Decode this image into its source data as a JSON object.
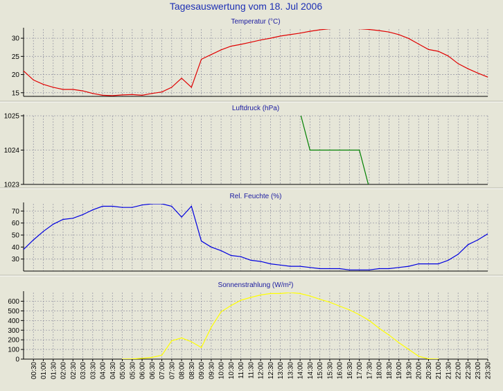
{
  "page": {
    "title": "Tagesauswertung vom 18. Jul 2006"
  },
  "chart_data": [
    {
      "id": "temperature",
      "type": "line",
      "title": "Temperatur (°C)",
      "ylim": [
        14,
        32.5
      ],
      "yticks": [
        15,
        20,
        25,
        30
      ],
      "color": "#e00000",
      "grid": true,
      "series": [
        {
          "values": [
            [
              0,
              21
            ],
            [
              0.5,
              18.5
            ],
            [
              1,
              17.3
            ],
            [
              1.5,
              16.5
            ],
            [
              2,
              15.9
            ],
            [
              2.5,
              15.9
            ],
            [
              3,
              15.5
            ],
            [
              3.5,
              14.8
            ],
            [
              4,
              14.3
            ],
            [
              4.5,
              14.2
            ],
            [
              5,
              14.4
            ],
            [
              5.5,
              14.5
            ],
            [
              6,
              14.3
            ],
            [
              6.5,
              14.8
            ],
            [
              7,
              15.2
            ],
            [
              7.5,
              16.5
            ],
            [
              8,
              19
            ],
            [
              8.5,
              16.5
            ],
            [
              9,
              24.2
            ],
            [
              9.5,
              25.5
            ],
            [
              10,
              26.8
            ],
            [
              10.5,
              27.8
            ],
            [
              11,
              28.3
            ],
            [
              11.5,
              28.9
            ],
            [
              12,
              29.5
            ],
            [
              12.5,
              30
            ],
            [
              13,
              30.6
            ],
            [
              13.5,
              31
            ],
            [
              14,
              31.4
            ],
            [
              14.5,
              31.9
            ],
            [
              15,
              32.3
            ],
            [
              15.5,
              32.6
            ],
            [
              16,
              32.7
            ],
            [
              16.5,
              32.7
            ],
            [
              17,
              32.6
            ],
            [
              17.5,
              32.4
            ],
            [
              18,
              32.1
            ],
            [
              18.5,
              31.7
            ],
            [
              19,
              31
            ],
            [
              19.5,
              29.9
            ],
            [
              20,
              28.4
            ],
            [
              20.5,
              26.9
            ],
            [
              21,
              26.4
            ],
            [
              21.5,
              25.1
            ],
            [
              22,
              23
            ],
            [
              22.5,
              21.6
            ],
            [
              23,
              20.4
            ],
            [
              23.5,
              19.3
            ]
          ]
        }
      ]
    },
    {
      "id": "pressure",
      "type": "line",
      "title": "Luftdruck (hPa)",
      "ylim": [
        1023,
        1025
      ],
      "yticks": [
        1023,
        1024,
        1025
      ],
      "color": "#008000",
      "grid": true,
      "series": [
        {
          "values": [
            [
              14,
              1025.1
            ],
            [
              14.5,
              1024
            ],
            [
              15,
              1024
            ],
            [
              15.5,
              1024
            ],
            [
              16,
              1024
            ],
            [
              16.5,
              1024
            ],
            [
              17,
              1024
            ],
            [
              17.5,
              1022.9
            ]
          ]
        }
      ]
    },
    {
      "id": "humidity",
      "type": "line",
      "title": "Rel. Feuchte (%)",
      "ylim": [
        20,
        76
      ],
      "yticks": [
        30,
        40,
        50,
        60,
        70
      ],
      "color": "#0000e0",
      "grid": true,
      "series": [
        {
          "values": [
            [
              0,
              38
            ],
            [
              0.5,
              46
            ],
            [
              1,
              53
            ],
            [
              1.5,
              59
            ],
            [
              2,
              63
            ],
            [
              2.5,
              64
            ],
            [
              3,
              67
            ],
            [
              3.5,
              71
            ],
            [
              4,
              74
            ],
            [
              4.5,
              74
            ],
            [
              5,
              73
            ],
            [
              5.5,
              73
            ],
            [
              6,
              75
            ],
            [
              6.5,
              76
            ],
            [
              7,
              76
            ],
            [
              7.5,
              74
            ],
            [
              8,
              65
            ],
            [
              8.5,
              74
            ],
            [
              9,
              45
            ],
            [
              9.5,
              40
            ],
            [
              10,
              37
            ],
            [
              10.5,
              33
            ],
            [
              11,
              32
            ],
            [
              11.5,
              29
            ],
            [
              12,
              28
            ],
            [
              12.5,
              26
            ],
            [
              13,
              25
            ],
            [
              13.5,
              24
            ],
            [
              14,
              24
            ],
            [
              14.5,
              23
            ],
            [
              15,
              22
            ],
            [
              15.5,
              22
            ],
            [
              16,
              22
            ],
            [
              16.5,
              21
            ],
            [
              17,
              21
            ],
            [
              17.5,
              21
            ],
            [
              18,
              22
            ],
            [
              18.5,
              22
            ],
            [
              19,
              23
            ],
            [
              19.5,
              24
            ],
            [
              20,
              26
            ],
            [
              20.5,
              26
            ],
            [
              21,
              26
            ],
            [
              21.5,
              29
            ],
            [
              22,
              34
            ],
            [
              22.5,
              42
            ],
            [
              23,
              46
            ],
            [
              23.5,
              51
            ]
          ]
        }
      ]
    },
    {
      "id": "solar",
      "type": "line",
      "title": "Sonnenstrahlung (W/m²)",
      "ylim": [
        0,
        690
      ],
      "yticks": [
        0,
        100,
        200,
        300,
        400,
        500,
        600
      ],
      "color": "#ffff00",
      "grid": true,
      "series": [
        {
          "values": [
            [
              5,
              0
            ],
            [
              5.5,
              2
            ],
            [
              6,
              8
            ],
            [
              6.5,
              18
            ],
            [
              7,
              40
            ],
            [
              7.5,
              190
            ],
            [
              8,
              220
            ],
            [
              8.5,
              180
            ],
            [
              9,
              120
            ],
            [
              9.5,
              330
            ],
            [
              10,
              490
            ],
            [
              10.5,
              555
            ],
            [
              11,
              610
            ],
            [
              11.5,
              640
            ],
            [
              12,
              665
            ],
            [
              12.5,
              680
            ],
            [
              13,
              680
            ],
            [
              13.5,
              690
            ],
            [
              14,
              680
            ],
            [
              14.5,
              655
            ],
            [
              15,
              620
            ],
            [
              15.5,
              590
            ],
            [
              16,
              550
            ],
            [
              16.5,
              510
            ],
            [
              17,
              460
            ],
            [
              17.5,
              400
            ],
            [
              18,
              320
            ],
            [
              18.5,
              250
            ],
            [
              19,
              170
            ],
            [
              19.5,
              100
            ],
            [
              20,
              30
            ],
            [
              20.5,
              3
            ],
            [
              21,
              0
            ]
          ]
        }
      ]
    }
  ],
  "x_axis": {
    "range": [
      0,
      23.5
    ],
    "ticks": [
      "00:30",
      "01:00",
      "01:30",
      "02:00",
      "02:30",
      "03:00",
      "03:30",
      "04:00",
      "04:30",
      "05:00",
      "05:30",
      "06:00",
      "06:30",
      "07:00",
      "07:30",
      "08:00",
      "08:30",
      "09:00",
      "09:30",
      "10:00",
      "10:30",
      "11:00",
      "11:30",
      "12:00",
      "12:30",
      "13:00",
      "13:30",
      "14:00",
      "14:30",
      "15:00",
      "15:30",
      "16:00",
      "16:30",
      "17:00",
      "17:30",
      "18:00",
      "18:30",
      "19:00",
      "19:30",
      "20:00",
      "20:30",
      "21:00",
      "21:30",
      "22:00",
      "22:30",
      "23:00",
      "23:30"
    ]
  }
}
